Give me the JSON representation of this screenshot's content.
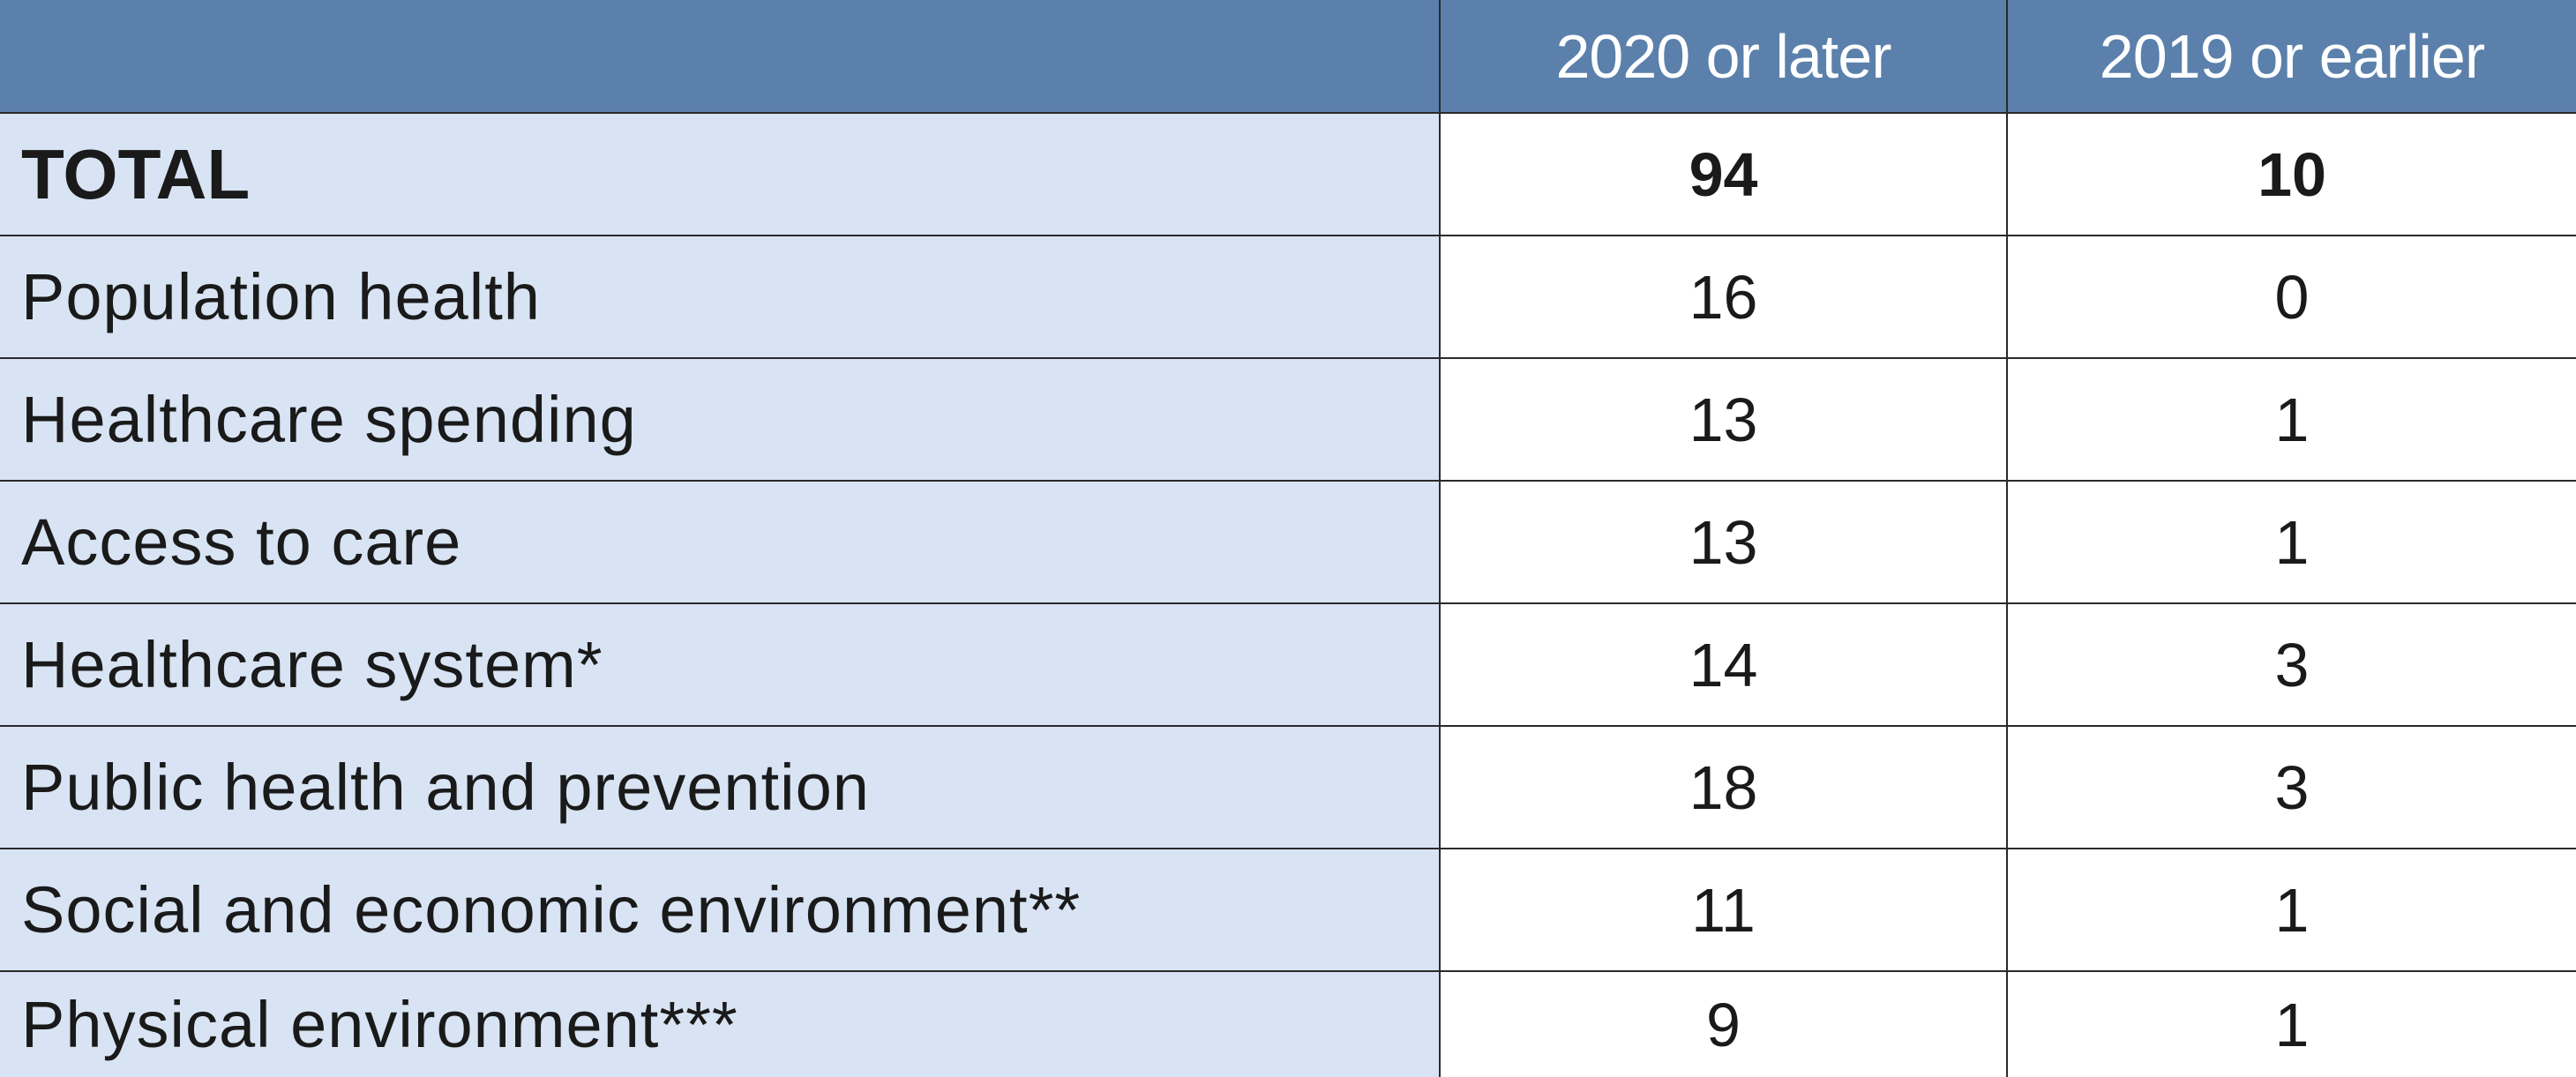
{
  "table": {
    "headers": [
      "",
      "2020 or later",
      "2019 or earlier"
    ],
    "rows": [
      {
        "label": "TOTAL",
        "later": "94",
        "earlier": "10"
      },
      {
        "label": "Population health",
        "later": "16",
        "earlier": "0"
      },
      {
        "label": "Healthcare spending",
        "later": "13",
        "earlier": "1"
      },
      {
        "label": "Access to care",
        "later": "13",
        "earlier": "1"
      },
      {
        "label": "Healthcare system*",
        "later": "14",
        "earlier": "3"
      },
      {
        "label": "Public health and prevention",
        "later": "18",
        "earlier": "3"
      },
      {
        "label": "Social and economic environment**",
        "later": "11",
        "earlier": "1"
      },
      {
        "label": "Physical environment***",
        "later": "9",
        "earlier": "1"
      }
    ]
  },
  "colors": {
    "header_bg": "#5b80ab",
    "label_bg": "#d8e4f3",
    "value_bg": "#ffffff",
    "border": "#2a2a2a"
  }
}
